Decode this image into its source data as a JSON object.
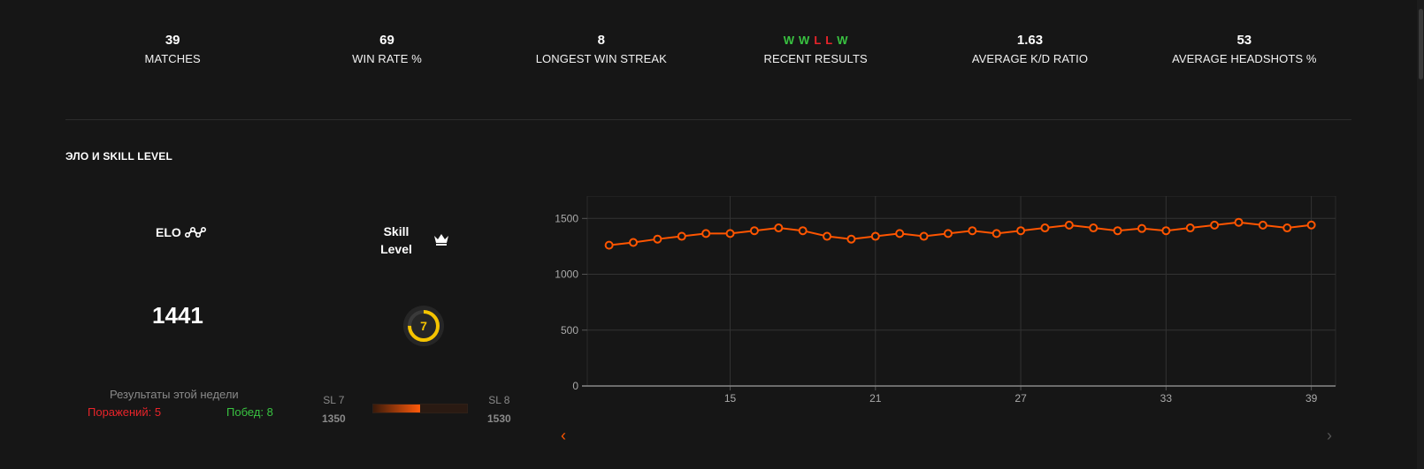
{
  "stats": [
    {
      "value": "39",
      "label": "MATCHES"
    },
    {
      "value": "69",
      "label": "WIN RATE %"
    },
    {
      "value": "8",
      "label": "LONGEST WIN STREAK"
    },
    {
      "value": "",
      "label": "RECENT RESULTS"
    },
    {
      "value": "1.63",
      "label": "AVERAGE K/D RATIO"
    },
    {
      "value": "53",
      "label": "AVERAGE HEADSHOTS %"
    }
  ],
  "recent_results": [
    {
      "r": "W",
      "color": "#39c341"
    },
    {
      "r": "W",
      "color": "#39c341"
    },
    {
      "r": "L",
      "color": "#e8242a"
    },
    {
      "r": "L",
      "color": "#e8242a"
    },
    {
      "r": "W",
      "color": "#39c341"
    }
  ],
  "section_title": "ЭЛО И SKILL LEVEL",
  "elo": {
    "label": "ELO",
    "value": "1441",
    "icon": "trend-icon"
  },
  "skill": {
    "label_line1": "Skill",
    "label_line2": "Level",
    "level": "7",
    "icon": "crown-icon",
    "ring_color": "#f5c400",
    "ring_fraction": 0.75
  },
  "week": {
    "title": "Результаты этой недели",
    "losses": "Поражений: 5",
    "wins": "Побед: 8"
  },
  "sl_progress": {
    "left_label": "SL 7",
    "left_value": "1350",
    "right_label": "SL 8",
    "right_value": "1530",
    "fraction": 0.5
  },
  "colors": {
    "accent": "#ff5500",
    "bg": "#161616",
    "win": "#39c341",
    "loss": "#e8242a"
  },
  "chart_data": {
    "type": "line",
    "x": [
      10,
      11,
      12,
      13,
      14,
      15,
      16,
      17,
      18,
      19,
      20,
      21,
      22,
      23,
      24,
      25,
      26,
      27,
      28,
      29,
      30,
      31,
      32,
      33,
      34,
      35,
      36,
      37,
      38,
      39
    ],
    "values": [
      1260,
      1285,
      1315,
      1340,
      1365,
      1365,
      1390,
      1415,
      1390,
      1340,
      1315,
      1340,
      1365,
      1340,
      1365,
      1390,
      1365,
      1390,
      1415,
      1440,
      1415,
      1390,
      1410,
      1390,
      1415,
      1440,
      1465,
      1440,
      1415,
      1441
    ],
    "xticks": [
      15,
      21,
      27,
      33,
      39
    ],
    "yticks": [
      0,
      500,
      1000,
      1500
    ],
    "ylim": [
      0,
      1700
    ],
    "xlim": [
      9.1,
      40
    ],
    "grid": true,
    "color": "#ff5500"
  },
  "nav": {
    "prev": "‹",
    "next": "›"
  }
}
